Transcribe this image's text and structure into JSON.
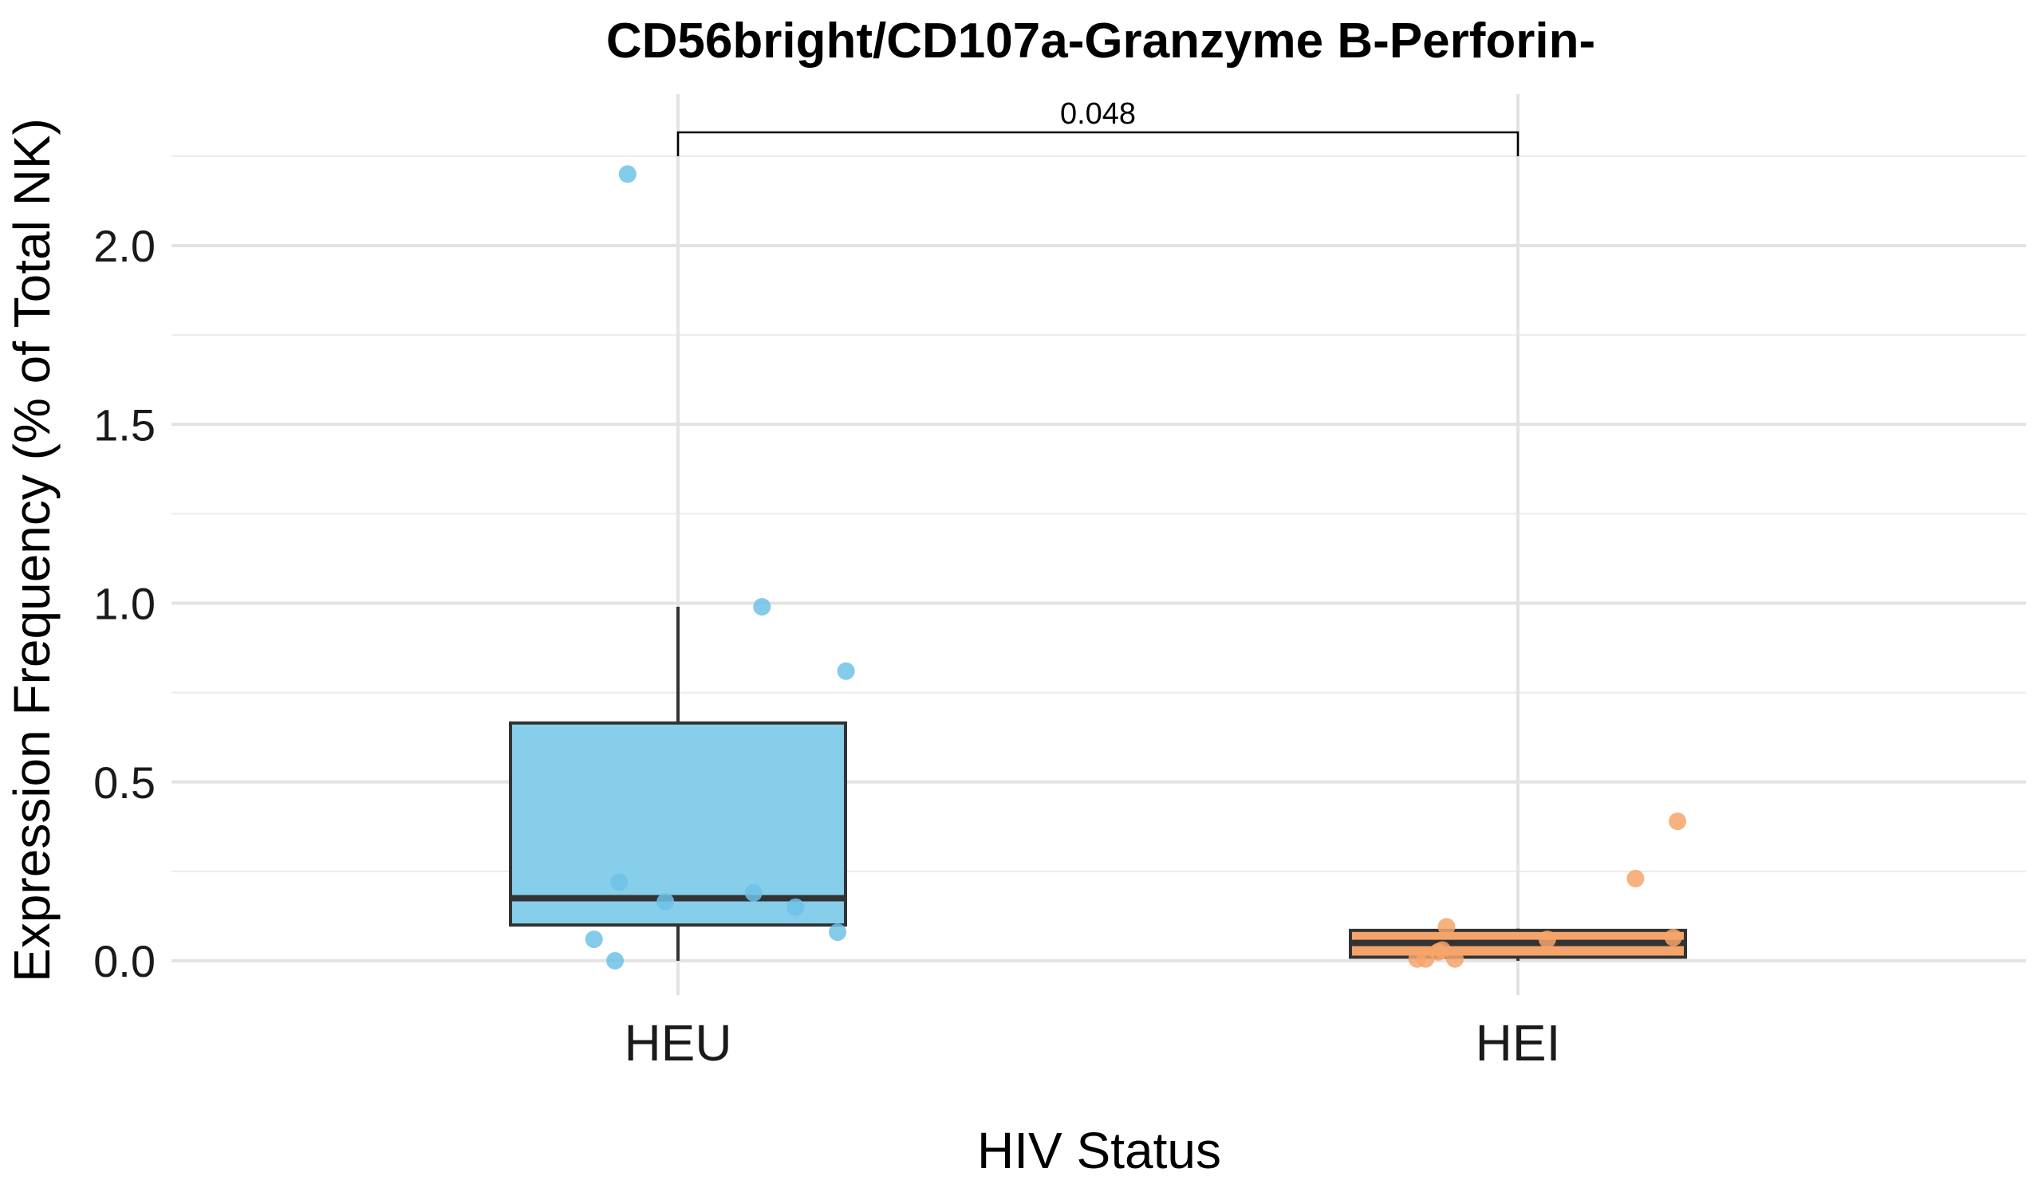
{
  "chart_data": {
    "type": "boxplot",
    "title": "CD56bright/CD107a-Granzyme B-Perforin-",
    "xlabel": "HIV Status",
    "ylabel": "Expression Frequency (% of Total NK)",
    "ylim": [
      -0.1,
      2.25
    ],
    "yticks": [
      0.0,
      0.5,
      1.0,
      1.5,
      2.0
    ],
    "ytick_labels": [
      "0.0",
      "0.5",
      "1.0",
      "1.5",
      "2.0"
    ],
    "grid": true,
    "categories": [
      "HEU",
      "HEI"
    ],
    "groups": [
      {
        "name": "HEU",
        "color": "#87CEEB",
        "point_color": "#6EC1E8",
        "box": {
          "q1": 0.1,
          "median": 0.175,
          "q3": 0.665,
          "whisker_low": 0.0,
          "whisker_high": 0.99
        },
        "points": [
          {
            "jitter": -0.06,
            "y": 2.2
          },
          {
            "jitter": 0.1,
            "y": 0.99
          },
          {
            "jitter": 0.2,
            "y": 0.81
          },
          {
            "jitter": -0.07,
            "y": 0.22
          },
          {
            "jitter": 0.09,
            "y": 0.19
          },
          {
            "jitter": -0.015,
            "y": 0.165
          },
          {
            "jitter": 0.14,
            "y": 0.15
          },
          {
            "jitter": 0.19,
            "y": 0.08
          },
          {
            "jitter": -0.1,
            "y": 0.06
          },
          {
            "jitter": -0.075,
            "y": 0.0
          }
        ]
      },
      {
        "name": "HEI",
        "color": "#F4A46A",
        "point_color": "#F4A46A",
        "box": {
          "q1": 0.01,
          "median": 0.05,
          "q3": 0.085,
          "whisker_low": 0.0,
          "whisker_high": 0.09
        },
        "points": [
          {
            "jitter": 0.19,
            "y": 0.39
          },
          {
            "jitter": 0.14,
            "y": 0.23
          },
          {
            "jitter": -0.085,
            "y": 0.095
          },
          {
            "jitter": 0.185,
            "y": 0.065
          },
          {
            "jitter": 0.035,
            "y": 0.06
          },
          {
            "jitter": -0.09,
            "y": 0.03
          },
          {
            "jitter": -0.095,
            "y": 0.025
          },
          {
            "jitter": -0.12,
            "y": 0.005
          },
          {
            "jitter": -0.11,
            "y": 0.005
          },
          {
            "jitter": -0.075,
            "y": 0.005
          }
        ]
      }
    ],
    "annotations": [
      {
        "type": "significance-bracket",
        "from": "HEU",
        "to": "HEI",
        "label": "0.048"
      }
    ]
  }
}
